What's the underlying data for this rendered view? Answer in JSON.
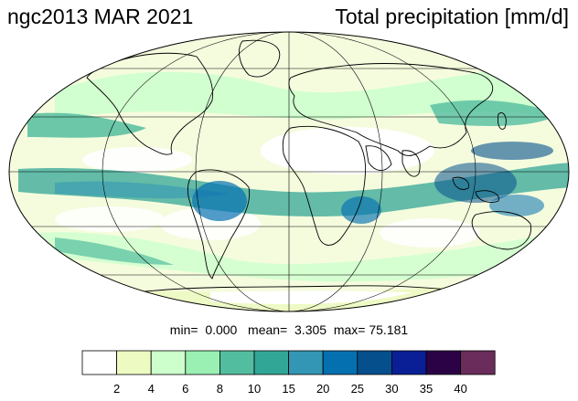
{
  "header": {
    "title_left": "ngc2013 MAR 2021",
    "title_right": "Total precipitation [mm/d]"
  },
  "stats": {
    "min_label": "min=",
    "min_value": "0.000",
    "mean_label": "mean=",
    "mean_value": "3.305",
    "max_label": "max=",
    "max_value": "75.181"
  },
  "colorbar": {
    "levels": [
      "2",
      "4",
      "6",
      "8",
      "10",
      "15",
      "20",
      "25",
      "30",
      "35",
      "40"
    ],
    "colors": [
      "#ffffff",
      "#edfac2",
      "#cdffcd",
      "#99f0b2",
      "#53bd9f",
      "#32a696",
      "#3296b4",
      "#0570b0",
      "#05508c",
      "#0a1f96",
      "#2c0246",
      "#6a2c5a"
    ]
  },
  "map": {
    "projection": "mollweide",
    "background_color": "#ffffff",
    "coastline_color": "#000000",
    "grid_color": "#000000"
  }
}
